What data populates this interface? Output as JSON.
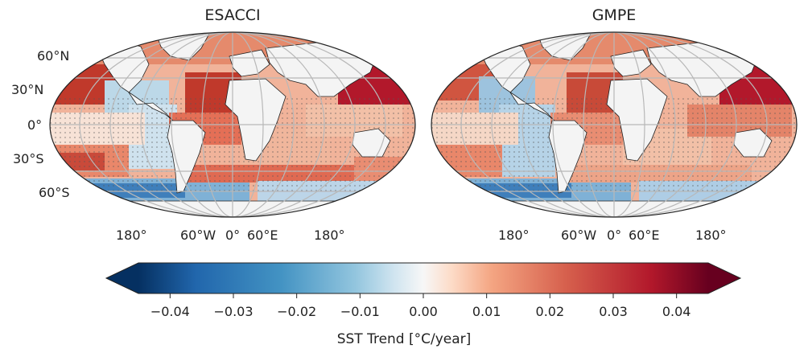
{
  "panels": [
    {
      "title": "ESACCI"
    },
    {
      "title": "GMPE"
    }
  ],
  "lat_labels": [
    "60°N",
    "30°N",
    "0°",
    "30°S",
    "60°S"
  ],
  "lon_labels": [
    "180°",
    "60°W",
    "0°",
    "60°E",
    "180°"
  ],
  "colorbar": {
    "label": "SST Trend [°C/year]",
    "ticks": [
      "−0.04",
      "−0.03",
      "−0.02",
      "−0.01",
      "0.00",
      "0.01",
      "0.02",
      "0.03",
      "0.04"
    ],
    "tick_values": [
      -0.04,
      -0.03,
      -0.02,
      -0.01,
      0.0,
      0.01,
      0.02,
      0.03,
      0.04
    ],
    "range": [
      -0.045,
      0.045
    ],
    "colormap": "RdBu_r",
    "extend": "both",
    "colors": {
      "low": "#053061",
      "mid": "#f7f7f7",
      "high": "#67001f"
    }
  }
}
